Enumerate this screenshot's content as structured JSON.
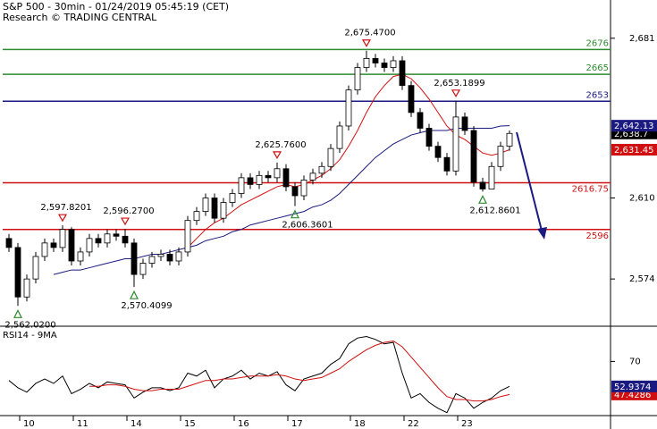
{
  "chart_data": {
    "type": "candlestick",
    "title": "S&P 500 - 30min - 01/24/2019 05:45:19 (CET)",
    "subtitle": "Research © TRADING CENTRAL",
    "categories": [
      null,
      null,
      "10",
      null,
      null,
      null,
      null,
      null,
      "11",
      null,
      null,
      null,
      null,
      null,
      "14",
      null,
      null,
      null,
      null,
      null,
      "15",
      null,
      null,
      null,
      null,
      null,
      "16",
      null,
      null,
      null,
      null,
      null,
      "17",
      null,
      null,
      null,
      null,
      null,
      null,
      "18",
      null,
      null,
      null,
      null,
      null,
      "22",
      null,
      null,
      null,
      null,
      null,
      "23",
      null,
      null,
      null,
      null,
      null
    ],
    "open": [
      2592,
      2588,
      2566,
      2574,
      2584,
      2590,
      2588,
      2596,
      2582,
      2586,
      2592,
      2590,
      2594,
      2593,
      2590,
      2576,
      2581,
      2584,
      2585,
      2582,
      2586,
      2600,
      2604,
      2610,
      2601,
      2608,
      2612,
      2619,
      2616,
      2620,
      2619,
      2623,
      2615,
      2611,
      2618,
      2621,
      2624,
      2632,
      2642,
      2658,
      2668,
      2672,
      2670,
      2668,
      2671,
      2660,
      2648,
      2641,
      2633,
      2628,
      2622,
      2646,
      2640,
      2617,
      2614,
      2624,
      2633
    ],
    "high": [
      2594,
      2590,
      2576,
      2586,
      2592,
      2592,
      2597.8201,
      2597,
      2588,
      2594,
      2594,
      2596,
      2596,
      2596.27,
      2592,
      2583,
      2586,
      2587,
      2587,
      2588,
      2602,
      2606,
      2612,
      2612,
      2610,
      2614,
      2621,
      2621,
      2622,
      2622,
      2625.76,
      2625,
      2617,
      2620,
      2623,
      2626,
      2634,
      2644,
      2660,
      2670,
      2675.47,
      2674,
      2672,
      2673,
      2673,
      2662,
      2650,
      2643,
      2635,
      2630,
      2653.1899,
      2648,
      2642,
      2619,
      2626,
      2635,
      2640
    ],
    "low": [
      2586,
      2562.02,
      2564,
      2572,
      2582,
      2586,
      2586,
      2580,
      2580,
      2584,
      2588,
      2588,
      2591,
      2588,
      2570.4099,
      2574,
      2579,
      2582,
      2580,
      2580,
      2584,
      2598,
      2602,
      2599,
      2599,
      2606,
      2610,
      2614,
      2614,
      2617,
      2617,
      2613,
      2606.3601,
      2609,
      2616,
      2619,
      2622,
      2630,
      2640,
      2656,
      2666,
      2668,
      2666,
      2666,
      2658,
      2646,
      2639,
      2631,
      2626,
      2620,
      2620,
      2638,
      2615,
      2612.8601,
      2614,
      2622,
      2631
    ],
    "close": [
      2588,
      2566,
      2574,
      2584,
      2590,
      2588,
      2596,
      2582,
      2586,
      2592,
      2590,
      2594,
      2593,
      2590,
      2576,
      2581,
      2584,
      2585,
      2582,
      2586,
      2600,
      2604,
      2610,
      2601,
      2608,
      2612,
      2619,
      2616,
      2620,
      2619,
      2623,
      2615,
      2611,
      2618,
      2621,
      2624,
      2632,
      2642,
      2658,
      2668,
      2672,
      2670,
      2668,
      2671,
      2660,
      2648,
      2641,
      2633,
      2628,
      2622,
      2646,
      2640,
      2617,
      2614,
      2624,
      2633,
      2638.7
    ],
    "close_label": "2,638.7",
    "up_color": "#ffffff",
    "down_color": "#000000",
    "ylim": [
      2553,
      2698
    ],
    "yticks": [
      {
        "value": 2681,
        "label": "2,681"
      },
      {
        "value": 2610,
        "label": "2,610"
      },
      {
        "value": 2574,
        "label": "2,574"
      }
    ],
    "series": [
      {
        "color": "#1a1a80",
        "last_label": "2,642.13",
        "values": [
          null,
          null,
          null,
          null,
          null,
          2576,
          2577,
          2578,
          2578,
          2579,
          2580,
          2581,
          2582,
          2583,
          2583,
          2584,
          2585,
          2585,
          2586,
          2587,
          2588,
          2589,
          2591,
          2592,
          2593,
          2595,
          2596,
          2598,
          2599,
          2600,
          2601,
          2602,
          2603,
          2604,
          2606,
          2607,
          2609,
          2612,
          2616,
          2620,
          2624,
          2628,
          2631,
          2634,
          2636,
          2638,
          2639,
          2640,
          2640,
          2640,
          2641,
          2641,
          2641,
          2641,
          2641,
          2642,
          2642.13
        ]
      },
      {
        "color": "#d01010",
        "last_label": "2,631.45",
        "values": [
          null,
          null,
          null,
          null,
          null,
          null,
          null,
          null,
          null,
          null,
          null,
          null,
          null,
          null,
          null,
          null,
          null,
          null,
          null,
          null,
          2588,
          2592,
          2596,
          2599,
          2601,
          2604,
          2607,
          2609,
          2611,
          2613,
          2615,
          2616,
          2615,
          2616,
          2618,
          2620,
          2623,
          2627,
          2633,
          2640,
          2648,
          2655,
          2660,
          2664,
          2665,
          2663,
          2659,
          2654,
          2648,
          2642,
          2638,
          2636,
          2633,
          2630,
          2629,
          2630,
          2631.45
        ]
      }
    ],
    "levels": [
      {
        "value": 2676,
        "color": "#2e8b2e"
      },
      {
        "value": 2665,
        "color": "#2e8b2e"
      },
      {
        "value": 2653,
        "color": "#1a1a80"
      },
      {
        "value": 2616.75,
        "color": "#d01010"
      },
      {
        "value": 2596,
        "color": "#d01010"
      }
    ],
    "annotations": [
      {
        "candle": 1,
        "value": 2562.02,
        "label": "2,562.0200",
        "kind": "low"
      },
      {
        "candle": 6,
        "value": 2597.8201,
        "label": "2,597.8201",
        "kind": "high"
      },
      {
        "candle": 13,
        "value": 2596.27,
        "label": "2,596.2700",
        "kind": "high"
      },
      {
        "candle": 14,
        "value": 2570.4099,
        "label": "2,570.4099",
        "kind": "low"
      },
      {
        "candle": 30,
        "value": 2625.76,
        "label": "2,625.7600",
        "kind": "high"
      },
      {
        "candle": 32,
        "value": 2606.3601,
        "label": "2,606.3601",
        "kind": "low"
      },
      {
        "candle": 40,
        "value": 2675.47,
        "label": "2,675.4700",
        "kind": "high"
      },
      {
        "candle": 50,
        "value": 2653.1899,
        "label": "2,653.1899",
        "kind": "high"
      },
      {
        "candle": 53,
        "value": 2612.8601,
        "label": "2,612.8601",
        "kind": "low"
      }
    ],
    "indicator": {
      "title": "RSI14 - 9MA",
      "ylim": [
        33,
        91
      ],
      "yticks": [
        70
      ],
      "series": [
        {
          "color": "#000000",
          "values": [
            57,
            52,
            49,
            55,
            58,
            55,
            60,
            48,
            51,
            55,
            52,
            56,
            55,
            54,
            45,
            49,
            52,
            52,
            50,
            52,
            62,
            60,
            64,
            52,
            58,
            60,
            64,
            58,
            62,
            60,
            63,
            54,
            50,
            58,
            60,
            62,
            68,
            72,
            82,
            86,
            87,
            85,
            82,
            83,
            62,
            45,
            48,
            42,
            38,
            35,
            48,
            45,
            38,
            42,
            45,
            50,
            52.9374
          ]
        },
        {
          "color": "#d01010",
          "values": [
            null,
            null,
            null,
            null,
            null,
            null,
            null,
            null,
            null,
            53,
            53,
            54,
            54,
            53,
            51,
            50,
            50,
            51,
            51,
            51,
            53,
            55,
            57,
            57,
            58,
            58,
            59,
            60,
            60,
            60,
            61,
            60,
            58,
            57,
            58,
            59,
            62,
            65,
            70,
            74,
            78,
            81,
            83,
            84,
            80,
            73,
            66,
            59,
            52,
            46,
            44,
            44,
            43,
            43,
            44,
            46,
            47.4286
          ]
        }
      ]
    }
  }
}
